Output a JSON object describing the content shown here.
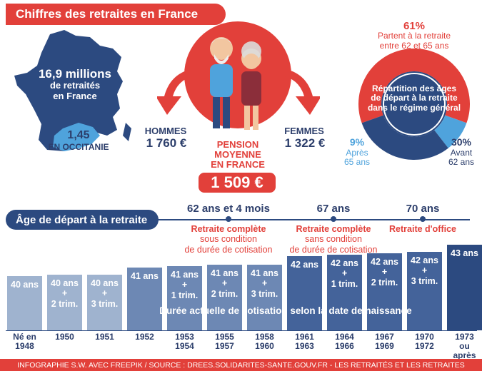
{
  "title": "Chiffres des retraites en France",
  "map": {
    "france_line1": "16,9 millions",
    "france_line2": "de retraités",
    "france_line3": "en France",
    "occ_value": "1,45",
    "occ_label": "EN OCCITANIE"
  },
  "pension": {
    "hommes_label": "HOMMES",
    "hommes_value": "1 760 €",
    "femmes_label": "FEMMES",
    "femmes_value": "1 322 €",
    "moyenne_line1": "PENSION",
    "moyenne_line2": "MOYENNE",
    "moyenne_line3": "EN FRANCE",
    "moyenne_value": "1 509 €"
  },
  "donut": {
    "pct_top": "61%",
    "label_top_1": "Partent à la retraite",
    "label_top_2": "entre 62 et 65 ans",
    "center_1": "Répartition des âges",
    "center_2": "de départ à la retraite",
    "center_3": "dans le régime général",
    "pct_left": "9%",
    "label_left_1": "Après",
    "label_left_2": "65 ans",
    "pct_right": "30%",
    "label_right_1": "Avant",
    "label_right_2": "62 ans",
    "colors": {
      "top": "#e2403a",
      "left": "#4fa3dc",
      "right": "#2c4a80"
    },
    "values": [
      61,
      9,
      30
    ]
  },
  "timeline": {
    "bar_label": "Âge de départ à la retraite",
    "t1_head": "62 ans et 4 mois",
    "t1_l1": "Retraite complète",
    "t1_l2": "sous condition",
    "t1_l3": "de durée de cotisation",
    "t2_head": "67 ans",
    "t2_l1": "Retraite complète",
    "t2_l2": "sans condition",
    "t2_l3": "de durée de cotisation",
    "t3_head": "70 ans",
    "t3_l1": "Retraite d'office"
  },
  "bars": [
    {
      "l1": "40 ans",
      "l2": "",
      "l3": "",
      "year1": "Né en",
      "year2": "1948",
      "color": "#9fb3cf"
    },
    {
      "l1": "40 ans",
      "l2": "+",
      "l3": "2 trim.",
      "year1": "1950",
      "year2": "",
      "color": "#9fb3cf"
    },
    {
      "l1": "40 ans",
      "l2": "+",
      "l3": "3 trim.",
      "year1": "1951",
      "year2": "",
      "color": "#9fb3cf"
    },
    {
      "l1": "41 ans",
      "l2": "",
      "l3": "",
      "year1": "1952",
      "year2": "",
      "color": "#6d88b4"
    },
    {
      "l1": "41 ans",
      "l2": "+",
      "l3": "1 trim.",
      "year1": "1953",
      "year2": "1954",
      "color": "#6d88b4"
    },
    {
      "l1": "41 ans",
      "l2": "+",
      "l3": "2 trim.",
      "year1": "1955",
      "year2": "1957",
      "color": "#6d88b4"
    },
    {
      "l1": "41 ans",
      "l2": "+",
      "l3": "3 trim.",
      "year1": "1958",
      "year2": "1960",
      "color": "#6d88b4"
    },
    {
      "l1": "42 ans",
      "l2": "",
      "l3": "",
      "year1": "1961",
      "year2": "1963",
      "color": "#44639a"
    },
    {
      "l1": "42 ans",
      "l2": "+",
      "l3": "1 trim.",
      "year1": "1964",
      "year2": "1966",
      "color": "#44639a"
    },
    {
      "l1": "42 ans",
      "l2": "+",
      "l3": "2 trim.",
      "year1": "1967",
      "year2": "1969",
      "color": "#44639a"
    },
    {
      "l1": "42 ans",
      "l2": "+",
      "l3": "3 trim.",
      "year1": "1970",
      "year2": "1972",
      "color": "#44639a"
    },
    {
      "l1": "43 ans",
      "l2": "",
      "l3": "",
      "year1": "1973",
      "year2": "ou après",
      "color": "#2c4a80"
    }
  ],
  "duree_label": "Durée actuelle de cotisation selon la date de naissance",
  "footer": "INFOGRAPHIE S.W. AVEC FREEPIK  / SOURCE : DREES.SOLIDARITES-SANTE.GOUV.FR - LES RETRAITÉS ET LES RETRAITES"
}
